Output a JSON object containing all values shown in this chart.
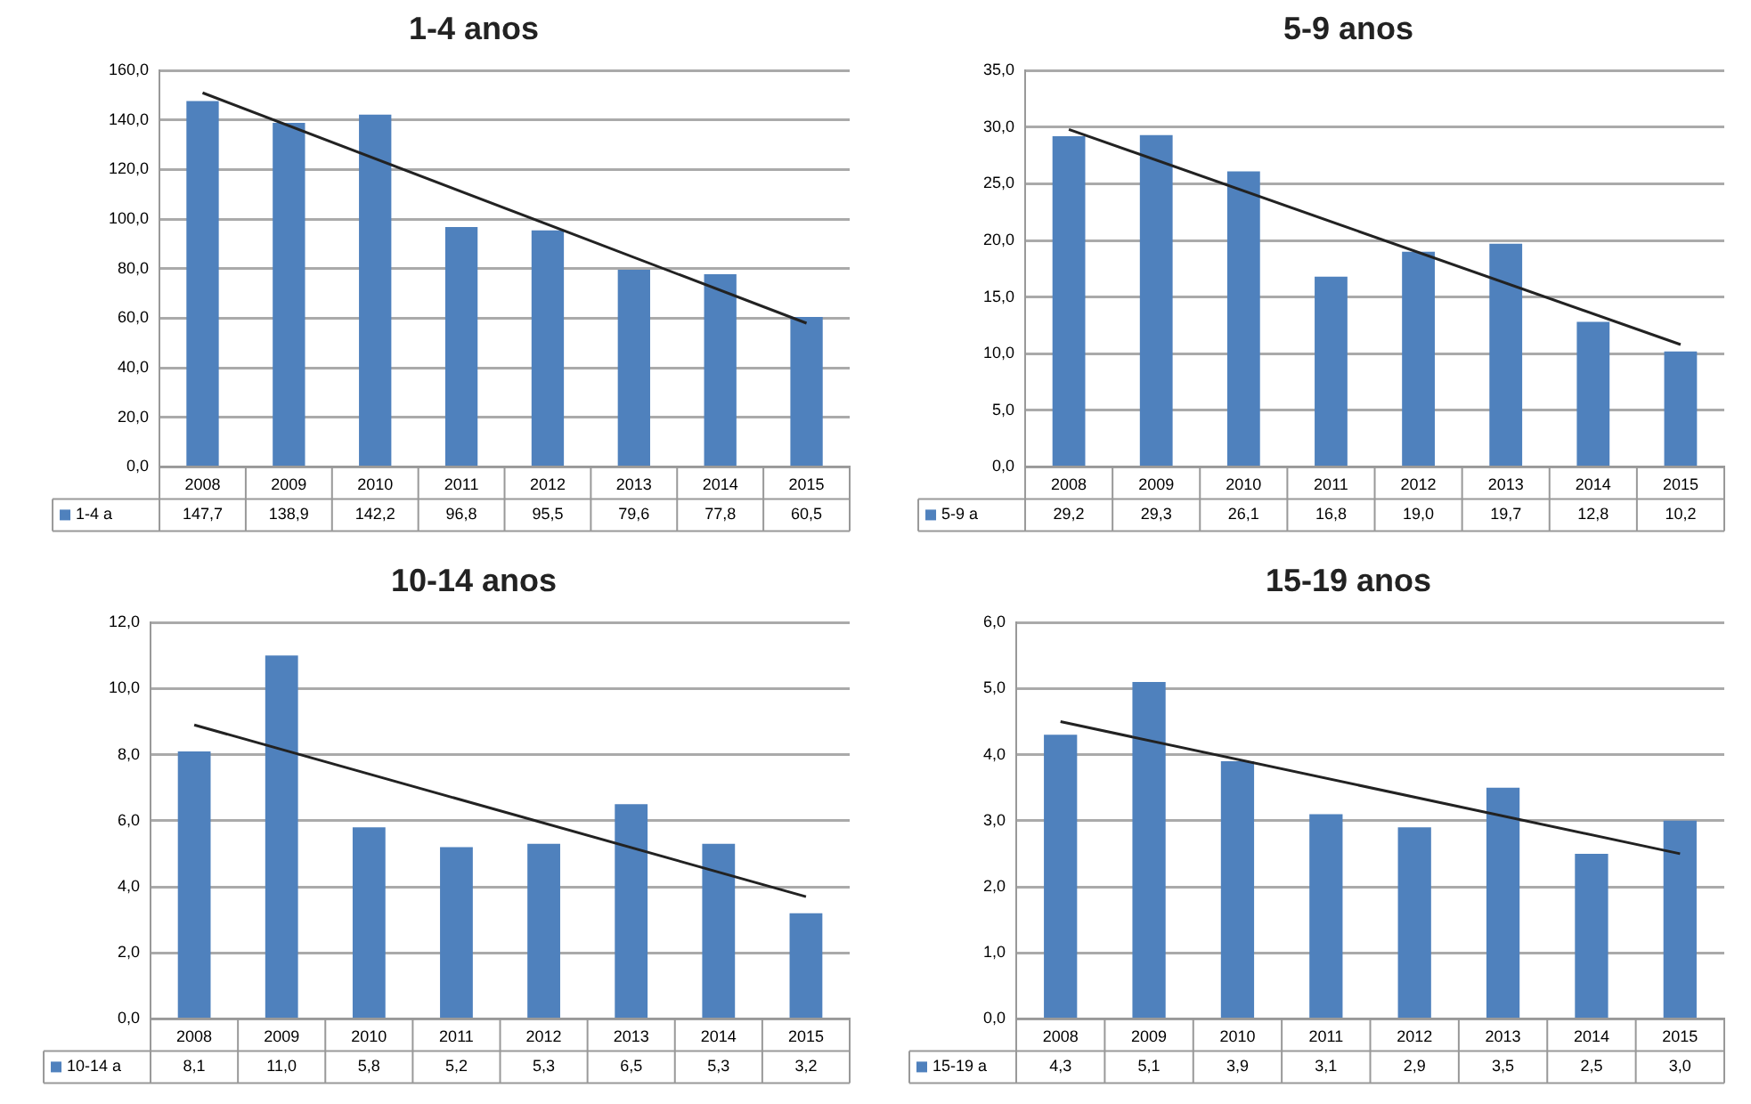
{
  "chart_data": [
    {
      "type": "bar",
      "title": "1-4 anos",
      "categories": [
        "2008",
        "2009",
        "2010",
        "2011",
        "2012",
        "2013",
        "2014",
        "2015"
      ],
      "ylim": [
        0,
        160
      ],
      "yticks": [
        {
          "value": 0,
          "label": "0,0"
        },
        {
          "value": 20,
          "label": "20,0"
        },
        {
          "value": 40,
          "label": "40,0"
        },
        {
          "value": 60,
          "label": "60,0"
        },
        {
          "value": 80,
          "label": "80,0"
        },
        {
          "value": 100,
          "label": "100,0"
        },
        {
          "value": 120,
          "label": "120,0"
        },
        {
          "value": 140,
          "label": "140,0"
        },
        {
          "value": 160,
          "label": "160,0"
        }
      ],
      "grid": "y",
      "series": [
        {
          "name": "1-4 a",
          "color": "#4f81bd",
          "values": [
            147.7,
            138.9,
            142.2,
            96.8,
            95.5,
            79.6,
            77.8,
            60.5
          ],
          "value_labels": [
            "147,7",
            "138,9",
            "142,2",
            "96,8",
            "95,5",
            "79,6",
            "77,8",
            "60,5"
          ]
        },
        {
          "type": "line",
          "color": "#222222",
          "values": [
            151,
            null,
            null,
            null,
            null,
            null,
            null,
            58
          ]
        }
      ]
    },
    {
      "type": "bar",
      "title": "5-9 anos",
      "categories": [
        "2008",
        "2009",
        "2010",
        "2011",
        "2012",
        "2013",
        "2014",
        "2015"
      ],
      "ylim": [
        0,
        35
      ],
      "yticks": [
        {
          "value": 0,
          "label": "0,0"
        },
        {
          "value": 5,
          "label": "5,0"
        },
        {
          "value": 10,
          "label": "10,0"
        },
        {
          "value": 15,
          "label": "15,0"
        },
        {
          "value": 20,
          "label": "20,0"
        },
        {
          "value": 25,
          "label": "25,0"
        },
        {
          "value": 30,
          "label": "30,0"
        },
        {
          "value": 35,
          "label": "35,0"
        }
      ],
      "grid": "y",
      "series": [
        {
          "name": "5-9 a",
          "color": "#4f81bd",
          "values": [
            29.2,
            29.3,
            26.1,
            16.8,
            19.0,
            19.7,
            12.8,
            10.2
          ],
          "value_labels": [
            "29,2",
            "29,3",
            "26,1",
            "16,8",
            "19,0",
            "19,7",
            "12,8",
            "10,2"
          ]
        },
        {
          "type": "line",
          "color": "#222222",
          "values": [
            29.8,
            null,
            null,
            null,
            null,
            null,
            null,
            10.8
          ]
        }
      ]
    },
    {
      "type": "bar",
      "title": "10-14 anos",
      "categories": [
        "2008",
        "2009",
        "2010",
        "2011",
        "2012",
        "2013",
        "2014",
        "2015"
      ],
      "ylim": [
        0,
        12
      ],
      "yticks": [
        {
          "value": 0,
          "label": "0,0"
        },
        {
          "value": 2,
          "label": "2,0"
        },
        {
          "value": 4,
          "label": "4,0"
        },
        {
          "value": 6,
          "label": "6,0"
        },
        {
          "value": 8,
          "label": "8,0"
        },
        {
          "value": 10,
          "label": "10,0"
        },
        {
          "value": 12,
          "label": "12,0"
        }
      ],
      "grid": "y",
      "series": [
        {
          "name": "10-14 a",
          "color": "#4f81bd",
          "values": [
            8.1,
            11.0,
            5.8,
            5.2,
            5.3,
            6.5,
            5.3,
            3.2
          ],
          "value_labels": [
            "8,1",
            "11,0",
            "5,8",
            "5,2",
            "5,3",
            "6,5",
            "5,3",
            "3,2"
          ]
        },
        {
          "type": "line",
          "color": "#222222",
          "values": [
            8.9,
            null,
            null,
            null,
            null,
            null,
            null,
            3.7
          ]
        }
      ]
    },
    {
      "type": "bar",
      "title": "15-19 anos",
      "categories": [
        "2008",
        "2009",
        "2010",
        "2011",
        "2012",
        "2013",
        "2014",
        "2015"
      ],
      "ylim": [
        0,
        6
      ],
      "yticks": [
        {
          "value": 0,
          "label": "0,0"
        },
        {
          "value": 1,
          "label": "1,0"
        },
        {
          "value": 2,
          "label": "2,0"
        },
        {
          "value": 3,
          "label": "3,0"
        },
        {
          "value": 4,
          "label": "4,0"
        },
        {
          "value": 5,
          "label": "5,0"
        },
        {
          "value": 6,
          "label": "6,0"
        }
      ],
      "grid": "y",
      "series": [
        {
          "name": "15-19 a",
          "color": "#4f81bd",
          "values": [
            4.3,
            5.1,
            3.9,
            3.1,
            2.9,
            3.5,
            2.5,
            3.0
          ],
          "value_labels": [
            "4,3",
            "5,1",
            "3,9",
            "3,1",
            "2,9",
            "3,5",
            "2,5",
            "3,0"
          ]
        },
        {
          "type": "line",
          "color": "#222222",
          "values": [
            4.5,
            null,
            null,
            null,
            null,
            null,
            null,
            2.5
          ]
        }
      ]
    }
  ]
}
